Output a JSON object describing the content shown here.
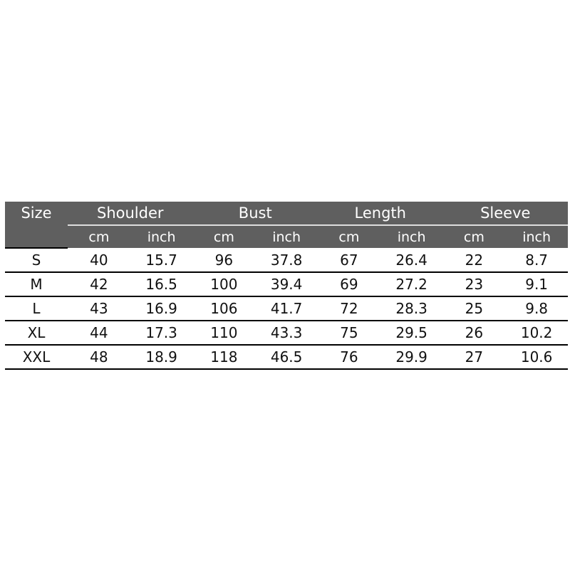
{
  "chart_data": {
    "type": "table",
    "header": {
      "size": "Size",
      "groups": [
        "Shoulder",
        "Bust",
        "Length",
        "Sleeve"
      ],
      "units": [
        "cm",
        "inch",
        "cm",
        "inch",
        "cm",
        "inch",
        "cm",
        "inch"
      ]
    },
    "rows": [
      [
        "S",
        "40",
        "15.7",
        "96",
        "37.8",
        "67",
        "26.4",
        "22",
        "8.7"
      ],
      [
        "M",
        "42",
        "16.5",
        "100",
        "39.4",
        "69",
        "27.2",
        "23",
        "9.1"
      ],
      [
        "L",
        "43",
        "16.9",
        "106",
        "41.7",
        "72",
        "28.3",
        "25",
        "9.8"
      ],
      [
        "XL",
        "44",
        "17.3",
        "110",
        "43.3",
        "75",
        "29.5",
        "26",
        "10.2"
      ],
      [
        "XXL",
        "48",
        "18.9",
        "118",
        "46.5",
        "76",
        "29.9",
        "27",
        "10.6"
      ]
    ],
    "colors": {
      "header_bg": "#5f5f5f",
      "header_text": "#ffffff"
    }
  }
}
